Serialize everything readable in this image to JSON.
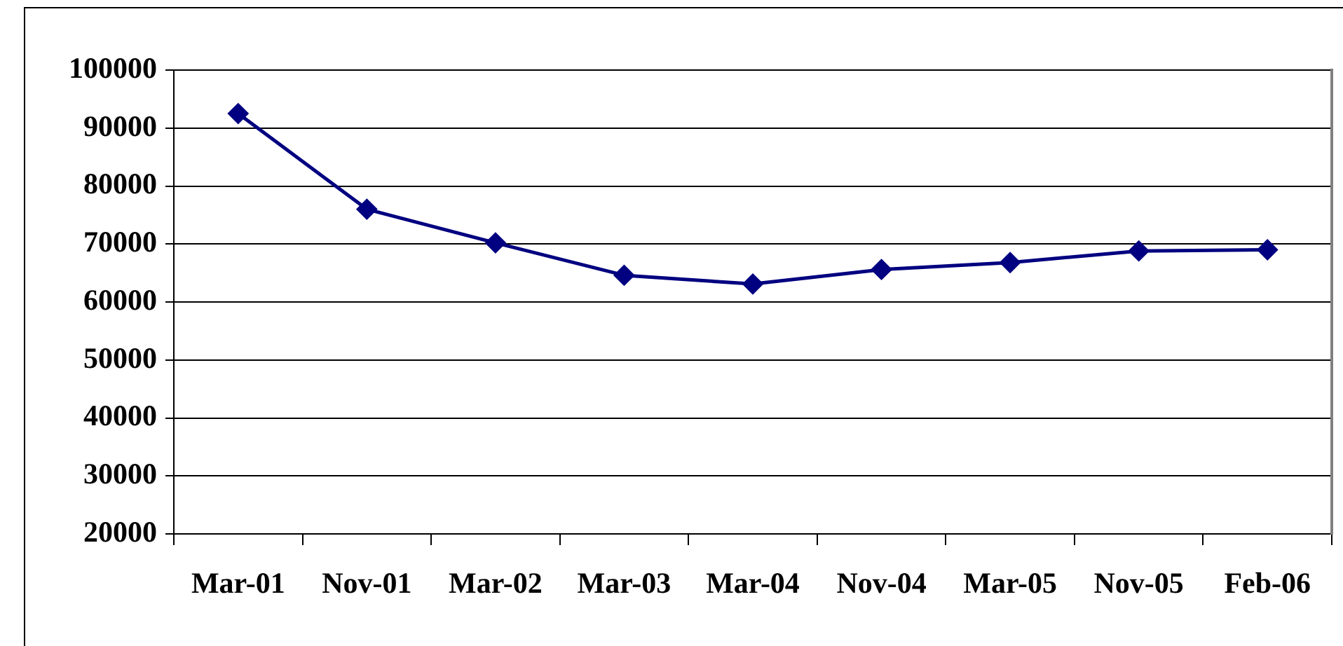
{
  "chart_data": {
    "type": "line",
    "categories": [
      "Mar-01",
      "Nov-01",
      "Mar-02",
      "Mar-03",
      "Mar-04",
      "Nov-04",
      "Mar-05",
      "Nov-05",
      "Feb-06"
    ],
    "series": [
      {
        "color": "#000080",
        "values": [
          92500,
          76000,
          70200,
          64600,
          63100,
          65600,
          66800,
          68800,
          69000
        ]
      }
    ],
    "ylim": [
      20000,
      100000
    ],
    "yticks": [
      20000,
      30000,
      40000,
      50000,
      60000,
      70000,
      80000,
      90000,
      100000
    ],
    "grid": "y",
    "marker": "diamond",
    "legend": false
  }
}
